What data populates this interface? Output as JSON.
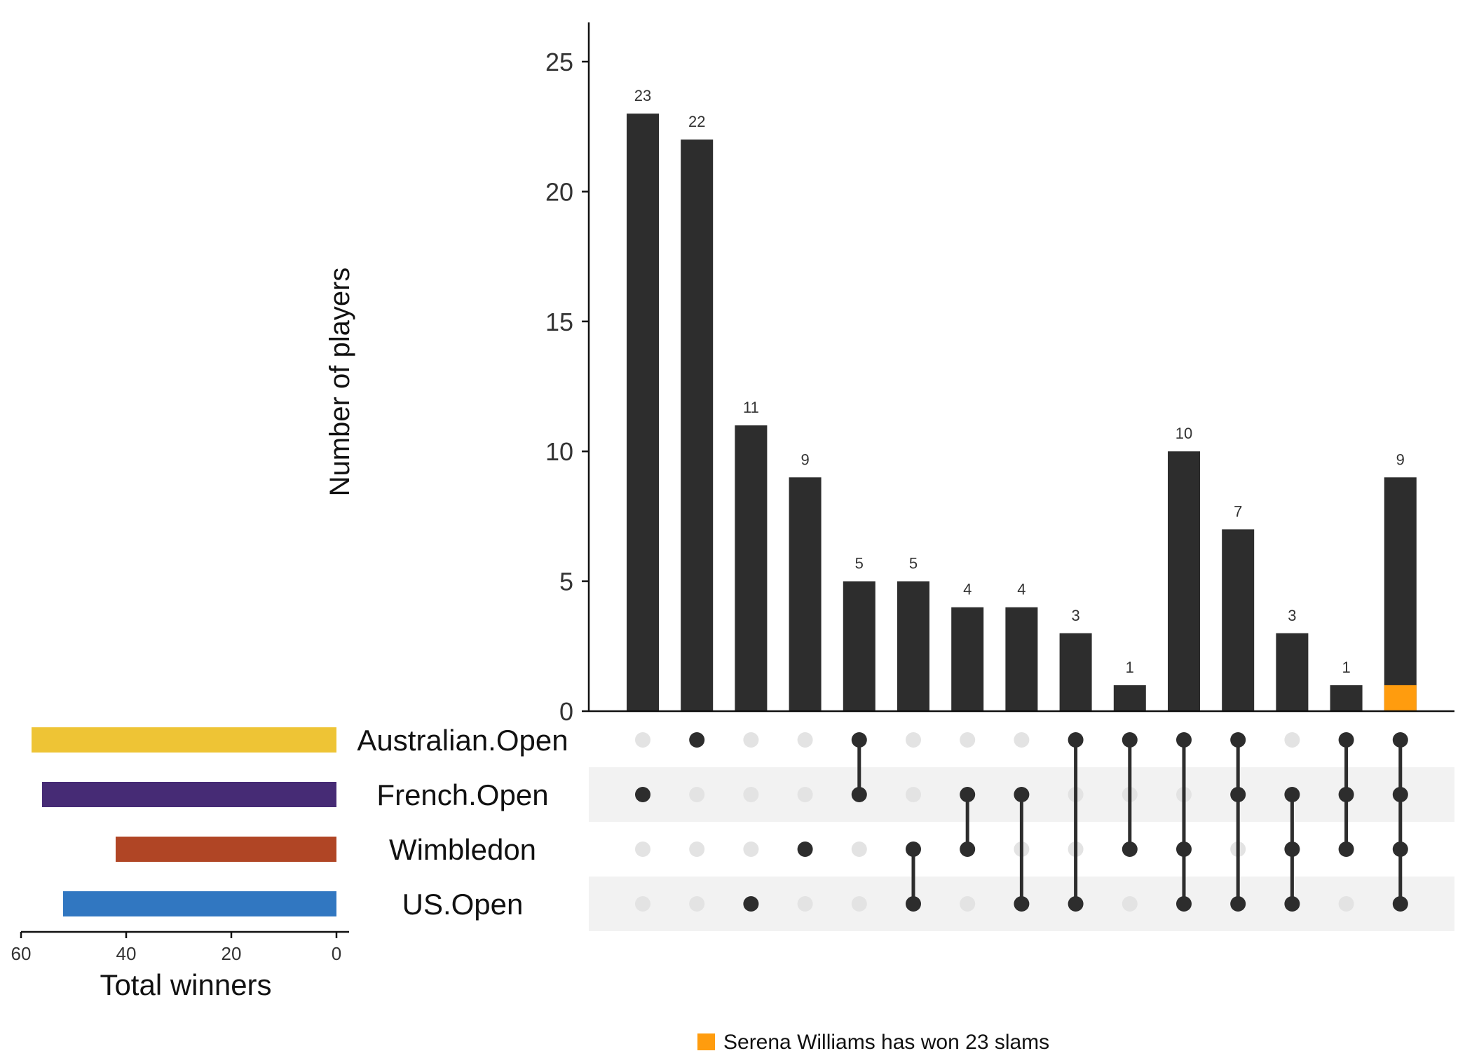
{
  "chart_data": {
    "type": "bar",
    "ylabel": "Number of players",
    "ylim": [
      0,
      26
    ],
    "yticks": [
      0,
      5,
      10,
      15,
      20,
      25
    ],
    "sets": [
      "Australian.Open",
      "French.Open",
      "Wimbledon",
      "US.Open"
    ],
    "set_colors": [
      "#EEC435",
      "#462B75",
      "#B04525",
      "#3177C1"
    ],
    "set_sizes_xlabel": "Total winners",
    "set_sizes": [
      58,
      56,
      42,
      52
    ],
    "set_size_ticks": [
      60,
      40,
      20,
      0
    ],
    "intersections": [
      {
        "sets": [
          "French.Open"
        ],
        "value": 23
      },
      {
        "sets": [
          "Australian.Open"
        ],
        "value": 22
      },
      {
        "sets": [
          "US.Open"
        ],
        "value": 11
      },
      {
        "sets": [
          "Wimbledon"
        ],
        "value": 9
      },
      {
        "sets": [
          "Australian.Open",
          "French.Open"
        ],
        "value": 5
      },
      {
        "sets": [
          "Wimbledon",
          "US.Open"
        ],
        "value": 5
      },
      {
        "sets": [
          "French.Open",
          "Wimbledon"
        ],
        "value": 4
      },
      {
        "sets": [
          "French.Open",
          "US.Open"
        ],
        "value": 4
      },
      {
        "sets": [
          "Australian.Open",
          "US.Open"
        ],
        "value": 3
      },
      {
        "sets": [
          "Australian.Open",
          "Wimbledon"
        ],
        "value": 1
      },
      {
        "sets": [
          "Australian.Open",
          "Wimbledon",
          "US.Open"
        ],
        "value": 10
      },
      {
        "sets": [
          "Australian.Open",
          "French.Open",
          "US.Open"
        ],
        "value": 7
      },
      {
        "sets": [
          "French.Open",
          "Wimbledon",
          "US.Open"
        ],
        "value": 3
      },
      {
        "sets": [
          "Australian.Open",
          "French.Open",
          "Wimbledon"
        ],
        "value": 1
      },
      {
        "sets": [
          "Australian.Open",
          "French.Open",
          "Wimbledon",
          "US.Open"
        ],
        "value": 9,
        "highlight": 1
      }
    ],
    "bar_color": "#2d2d2d",
    "highlight_color": "#FF9C0E",
    "legend": {
      "label": "Serena Williams has won 23 slams",
      "color": "#FF9C0E",
      "position": "bottom"
    }
  }
}
